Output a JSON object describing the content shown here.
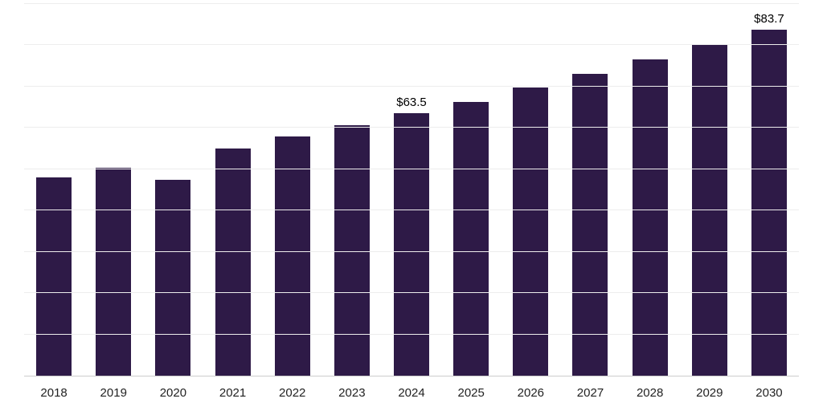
{
  "chart_data": {
    "type": "bar",
    "title": "",
    "xlabel": "",
    "ylabel": "",
    "categories": [
      "2018",
      "2019",
      "2020",
      "2021",
      "2022",
      "2023",
      "2024",
      "2025",
      "2026",
      "2027",
      "2028",
      "2029",
      "2030"
    ],
    "values": [
      48.0,
      50.3,
      47.5,
      55.1,
      58.0,
      60.7,
      63.5,
      66.3,
      69.8,
      73.0,
      76.5,
      80.0,
      83.7
    ],
    "data_labels": [
      "",
      "",
      "",
      "",
      "",
      "",
      "$63.5",
      "",
      "",
      "",
      "",
      "",
      "$83.7"
    ],
    "ylim": [
      0,
      90
    ],
    "gridline_step": 10,
    "grid": "on",
    "legend": "none",
    "bar_color": "#2E1A47",
    "gridline_color": "#ededed",
    "axis_line_color": "#cccccc",
    "tick_label_color": "#222222"
  }
}
